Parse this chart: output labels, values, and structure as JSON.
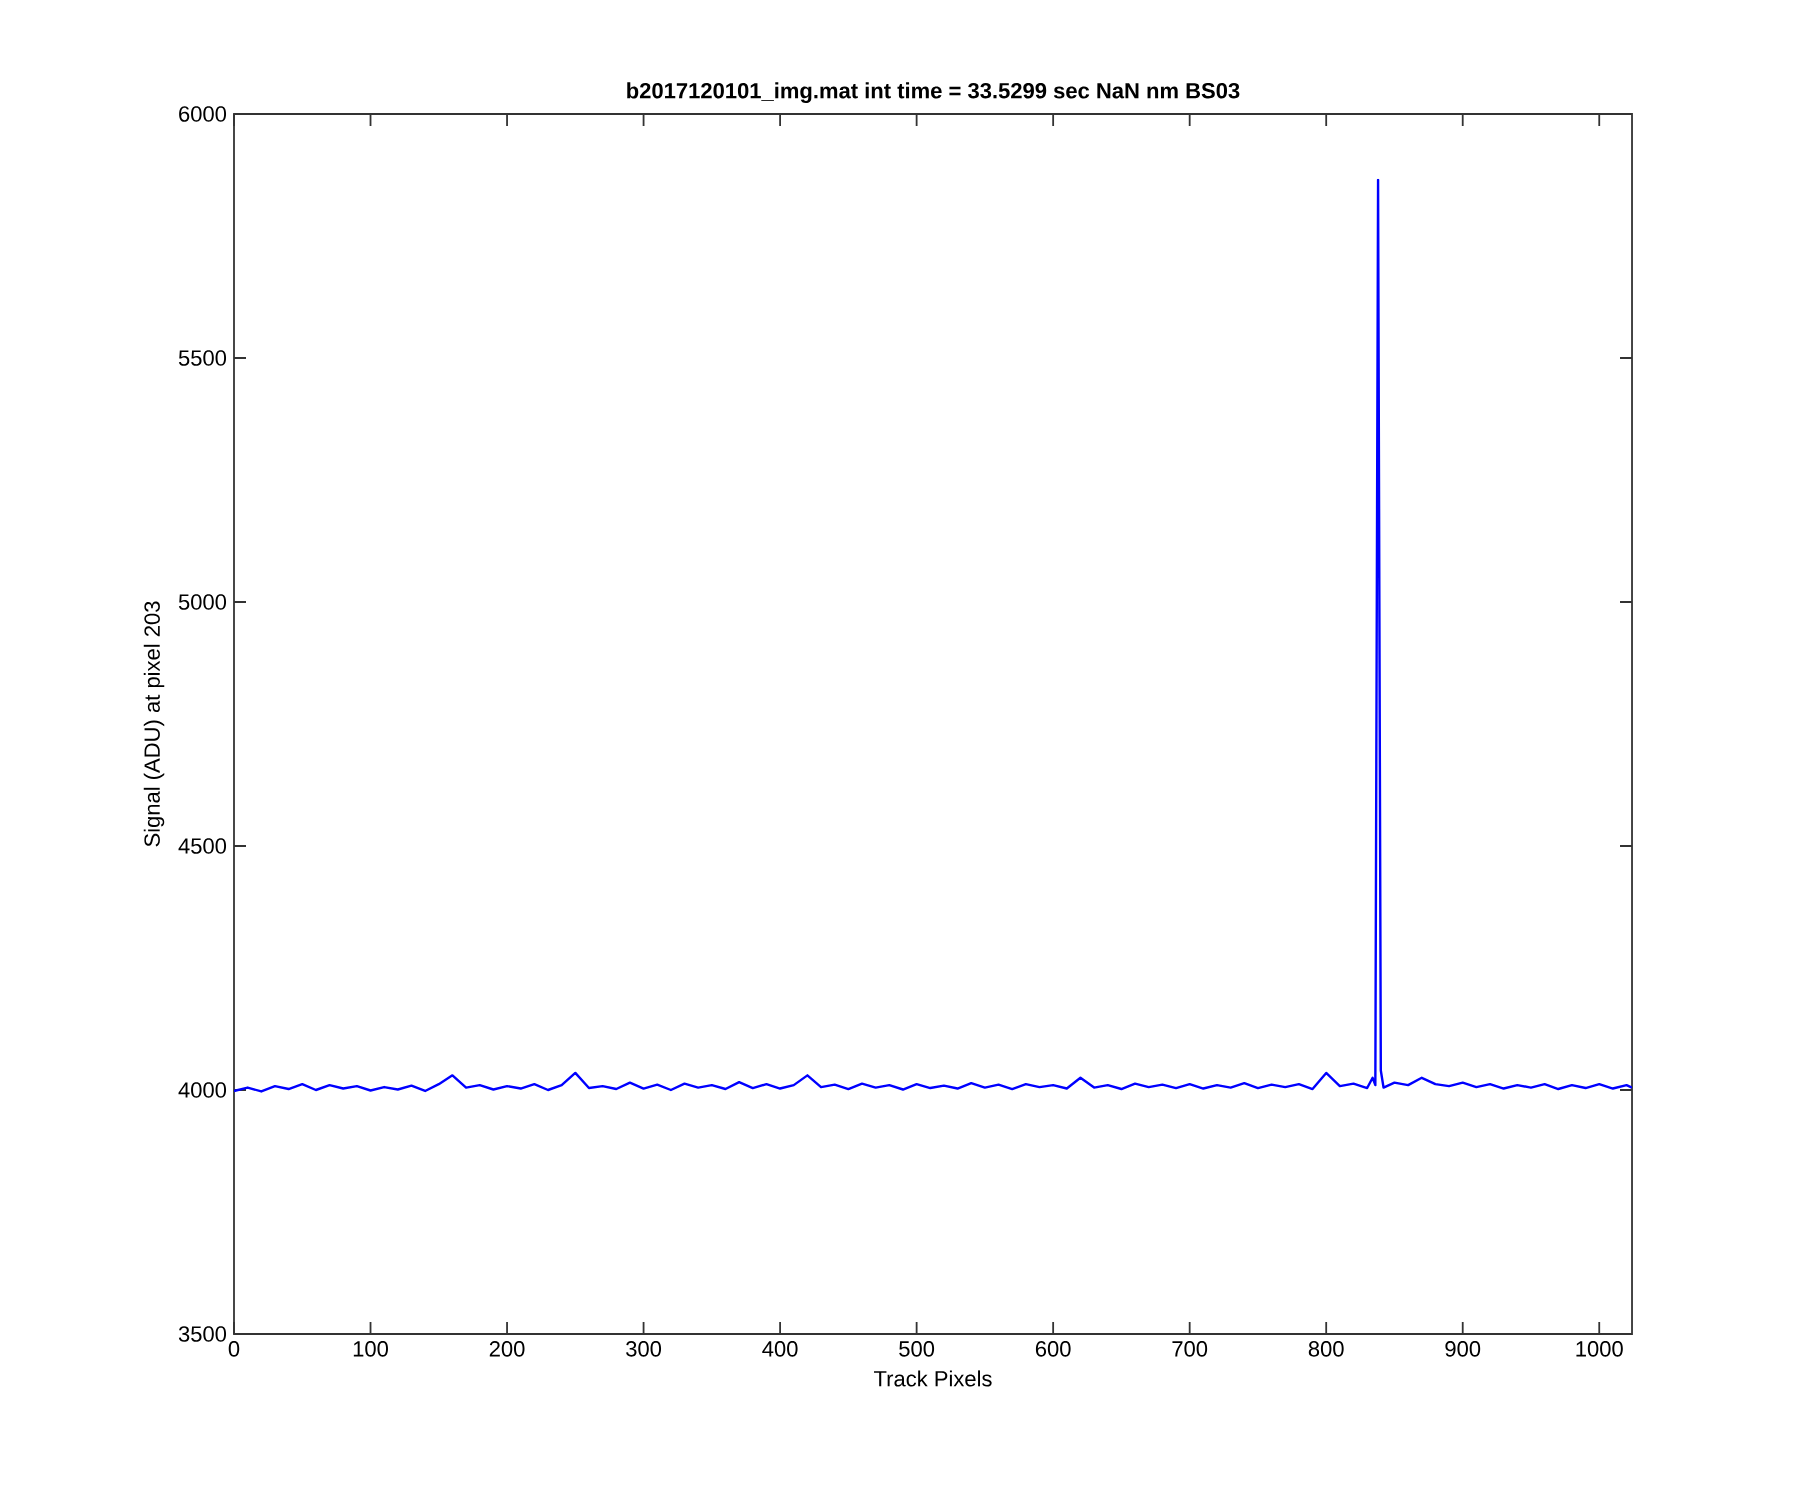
{
  "chart_data": {
    "type": "line",
    "title": "b2017120101_img.mat int time = 33.5299 sec  NaN nm BS03",
    "xlabel": "Track Pixels",
    "ylabel": "Signal (ADU) at pixel 203",
    "color": "#0000ff",
    "x": [
      0,
      10,
      20,
      30,
      40,
      50,
      60,
      70,
      80,
      90,
      100,
      110,
      120,
      130,
      140,
      150,
      160,
      170,
      180,
      190,
      200,
      210,
      220,
      230,
      240,
      250,
      260,
      270,
      280,
      290,
      300,
      310,
      320,
      330,
      340,
      350,
      360,
      370,
      380,
      390,
      400,
      410,
      420,
      430,
      440,
      450,
      460,
      470,
      480,
      490,
      500,
      510,
      520,
      530,
      540,
      550,
      560,
      570,
      580,
      590,
      600,
      610,
      620,
      630,
      640,
      650,
      660,
      670,
      680,
      690,
      700,
      710,
      720,
      730,
      740,
      750,
      760,
      770,
      780,
      790,
      800,
      810,
      820,
      830,
      834,
      836,
      838,
      840,
      842,
      850,
      860,
      870,
      880,
      890,
      900,
      910,
      920,
      930,
      940,
      950,
      960,
      970,
      980,
      990,
      1000,
      1010,
      1020,
      1024
    ],
    "values": [
      3998,
      4005,
      3997,
      4008,
      4002,
      4012,
      4000,
      4010,
      4003,
      4008,
      3999,
      4006,
      4001,
      4009,
      3998,
      4012,
      4030,
      4005,
      4010,
      4001,
      4008,
      4003,
      4012,
      4000,
      4010,
      4035,
      4004,
      4008,
      4002,
      4015,
      4003,
      4011,
      4000,
      4013,
      4005,
      4010,
      4002,
      4016,
      4004,
      4012,
      4003,
      4010,
      4030,
      4006,
      4011,
      4002,
      4013,
      4005,
      4010,
      4001,
      4012,
      4004,
      4009,
      4003,
      4014,
      4005,
      4011,
      4002,
      4012,
      4006,
      4010,
      4003,
      4025,
      4005,
      4010,
      4002,
      4013,
      4006,
      4011,
      4004,
      4012,
      4003,
      4010,
      4005,
      4014,
      4004,
      4011,
      4006,
      4012,
      4002,
      4035,
      4008,
      4013,
      4004,
      4025,
      4010,
      5865,
      4040,
      4005,
      4015,
      4010,
      4025,
      4012,
      4008,
      4015,
      4006,
      4012,
      4003,
      4010,
      4005,
      4012,
      4002,
      4010,
      4004,
      4012,
      4003,
      4010,
      4005
    ],
    "xlim": [
      0,
      1024
    ],
    "ylim": [
      3500,
      6000
    ],
    "xticks": [
      0,
      100,
      200,
      300,
      400,
      500,
      600,
      700,
      800,
      900,
      1000
    ],
    "yticks": [
      3500,
      4000,
      4500,
      5000,
      5500,
      6000
    ]
  }
}
